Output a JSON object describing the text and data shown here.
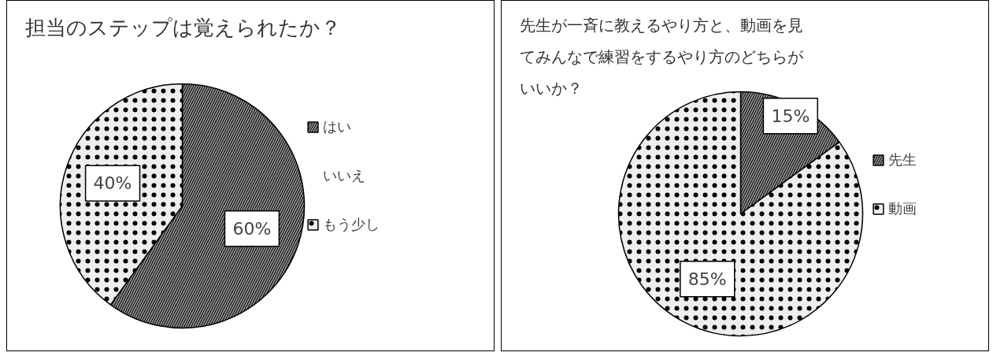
{
  "chart_data": [
    {
      "type": "pie",
      "title": "担当のステップは覚えられたか？",
      "categories": [
        "はい",
        "いいえ",
        "もう少し"
      ],
      "values": [
        60,
        0,
        40
      ],
      "colors": [
        "#8c8c8c",
        "#000000",
        "#eeeeee"
      ],
      "value_labels": [
        "60%",
        null,
        "40%"
      ],
      "legend": "right"
    },
    {
      "type": "pie",
      "title": "先生が一斉に教えるやり方と、動画を見てみんなで練習をするやり方のどちらがいいか？",
      "categories": [
        "先生",
        "動画"
      ],
      "values": [
        15,
        85
      ],
      "colors": [
        "#8c8c8c",
        "#eeeeee"
      ],
      "value_labels": [
        "15%",
        "85%"
      ],
      "legend": "right"
    }
  ]
}
